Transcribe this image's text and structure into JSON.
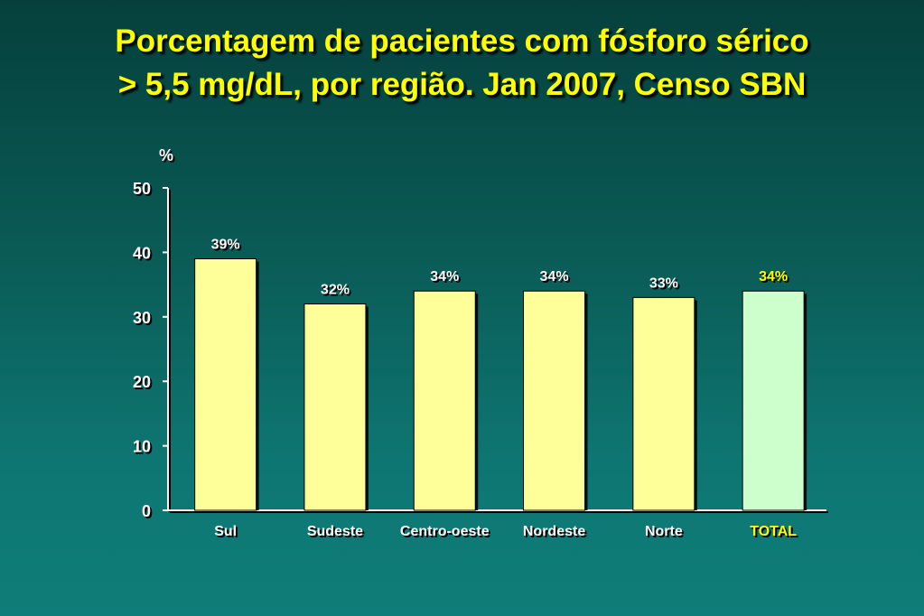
{
  "slide": {
    "title_line1": "Porcentagem de pacientes com fósforo sérico",
    "title_line2": "> 5,5 mg/dL, por região. Jan 2007, Censo SBN"
  },
  "colors": {
    "bar": "#ffff99",
    "total_bar": "#ccffcc",
    "title": "#ffff00",
    "total_label": "#ffff00",
    "text": "#ffffff"
  },
  "chart_data": {
    "type": "bar",
    "title": "Porcentagem de pacientes com fósforo sérico > 5,5 mg/dL, por região. Jan 2007, Censo SBN",
    "ylabel": "%",
    "xlabel": "",
    "ylim": [
      0,
      50
    ],
    "yticks": [
      0,
      10,
      20,
      30,
      40,
      50
    ],
    "categories": [
      "Sul",
      "Sudeste",
      "Centro-oeste",
      "Nordeste",
      "Norte",
      "TOTAL"
    ],
    "values": [
      39,
      32,
      34,
      34,
      33,
      34
    ],
    "data_labels": [
      "39%",
      "32%",
      "34%",
      "34%",
      "33%",
      "34%"
    ],
    "highlight_category": "TOTAL",
    "grid": false,
    "legend": "none"
  }
}
